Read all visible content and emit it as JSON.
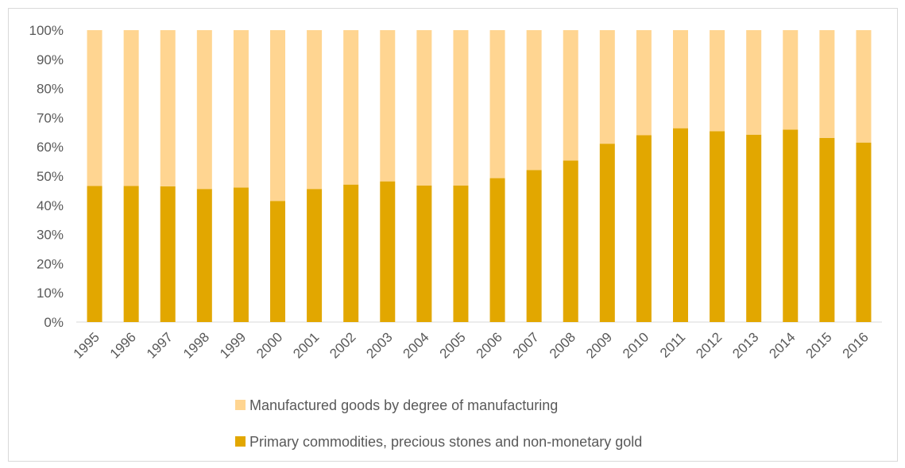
{
  "chart_data": {
    "type": "bar",
    "stacked": true,
    "percent_stacked": true,
    "categories": [
      "1995",
      "1996",
      "1997",
      "1998",
      "1999",
      "2000",
      "2001",
      "2002",
      "2003",
      "2004",
      "2005",
      "2006",
      "2007",
      "2008",
      "2009",
      "2010",
      "2011",
      "2012",
      "2013",
      "2014",
      "2015",
      "2016"
    ],
    "series": [
      {
        "name": "Primary commodities, precious stones and non-monetary gold",
        "color": "#e2a700",
        "values": [
          46.6,
          46.6,
          46.5,
          45.6,
          46.1,
          41.5,
          45.6,
          47.1,
          48.2,
          46.8,
          46.8,
          49.3,
          52.1,
          55.3,
          61.1,
          64.0,
          66.4,
          65.4,
          64.2,
          65.9,
          63.1,
          61.5
        ]
      },
      {
        "name": "Manufactured goods by degree of manufacturing",
        "color": "#ffd591",
        "values": [
          53.4,
          53.4,
          53.5,
          54.4,
          53.9,
          58.5,
          54.4,
          52.9,
          51.8,
          53.2,
          53.2,
          50.7,
          47.9,
          44.7,
          38.9,
          36.0,
          33.6,
          34.6,
          35.8,
          34.1,
          36.9,
          38.5
        ]
      }
    ],
    "ylim": [
      0,
      100
    ],
    "y_ticks": [
      "0%",
      "10%",
      "20%",
      "30%",
      "40%",
      "50%",
      "60%",
      "70%",
      "80%",
      "90%",
      "100%"
    ],
    "grid": false,
    "legend_position": "bottom",
    "legend_order": [
      1,
      0
    ],
    "title": "",
    "xlabel": "",
    "ylabel": ""
  }
}
